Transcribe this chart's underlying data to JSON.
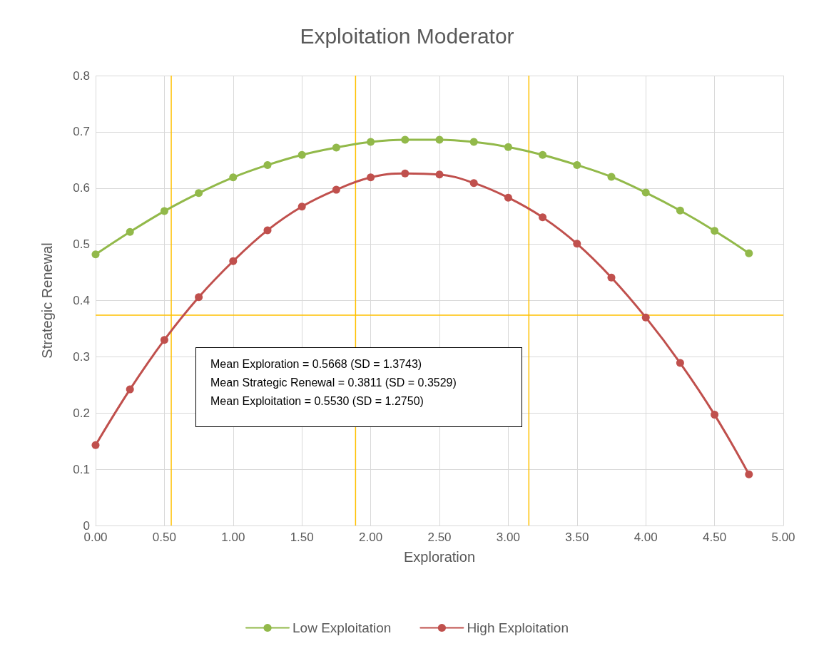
{
  "chart_data": {
    "type": "line",
    "title": "Exploitation Moderator",
    "xlabel": "Exploration",
    "ylabel": "Strategic Renewal",
    "x": [
      0,
      0.25,
      0.5,
      0.75,
      1,
      1.25,
      1.5,
      1.75,
      2,
      2.25,
      2.5,
      2.75,
      3,
      3.25,
      3.5,
      3.75,
      4,
      4.25,
      4.5,
      4.75
    ],
    "series": [
      {
        "name": "Low Exploitation",
        "color": "#92b94a",
        "values": [
          0.482,
          0.522,
          0.559,
          0.591,
          0.619,
          0.641,
          0.659,
          0.672,
          0.682,
          0.686,
          0.686,
          0.682,
          0.673,
          0.659,
          0.641,
          0.62,
          0.592,
          0.56,
          0.524,
          0.484
        ]
      },
      {
        "name": "High Exploitation",
        "color": "#c0504d",
        "values": [
          0.143,
          0.242,
          0.33,
          0.406,
          0.47,
          0.525,
          0.567,
          0.597,
          0.619,
          0.626,
          0.624,
          0.609,
          0.583,
          0.548,
          0.501,
          0.441,
          0.37,
          0.289,
          0.197,
          0.091
        ]
      }
    ],
    "xlim": [
      0,
      5
    ],
    "xticks": [
      {
        "value": 0,
        "label": "0.00"
      },
      {
        "value": 0.5,
        "label": "0.50"
      },
      {
        "value": 1,
        "label": "1.00"
      },
      {
        "value": 1.5,
        "label": "1.50"
      },
      {
        "value": 2,
        "label": "2.00"
      },
      {
        "value": 2.5,
        "label": "2.50"
      },
      {
        "value": 3,
        "label": "3.00"
      },
      {
        "value": 3.5,
        "label": "3.50"
      },
      {
        "value": 4,
        "label": "4.00"
      },
      {
        "value": 4.5,
        "label": "4.50"
      },
      {
        "value": 5,
        "label": "5.00"
      }
    ],
    "ylim": [
      0,
      0.8
    ],
    "yticks": [
      0,
      0.1,
      0.2,
      0.3,
      0.4,
      0.5,
      0.6,
      0.7,
      0.8
    ],
    "ref_lines": [
      {
        "axis": "x",
        "value": 0.55,
        "color": "#ffc000"
      },
      {
        "axis": "x",
        "value": 1.89,
        "color": "#ffc000"
      },
      {
        "axis": "x",
        "value": 3.15,
        "color": "#ffc000"
      },
      {
        "axis": "y",
        "value": 0.374,
        "color": "#ffc000"
      }
    ],
    "annotations": [
      "Mean Exploration = 0.5668 (SD = 1.3743)",
      "Mean Strategic Renewal = 0.3811 (SD = 0.3529)",
      "Mean Exploitation = 0.5530 (SD = 1.2750)"
    ],
    "grid": true,
    "legend": "bottom",
    "marker": "circle",
    "line_style": "solid"
  }
}
